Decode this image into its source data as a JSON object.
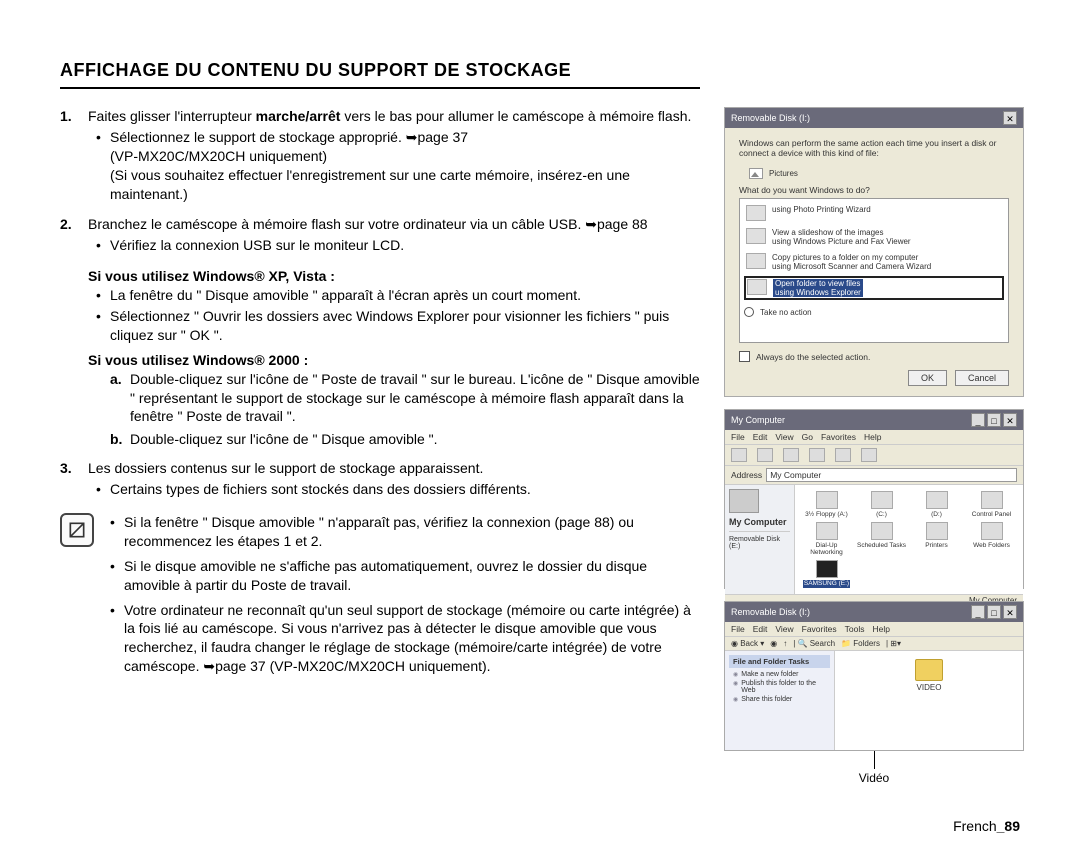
{
  "title": "AFFICHAGE DU CONTENU DU SUPPORT DE STOCKAGE",
  "step1": {
    "num": "1.",
    "text_a": "Faites glisser l'interrupteur ",
    "bold": "marche/arrêt",
    "text_b": " vers le bas pour allumer le caméscope à mémoire flash.",
    "bullet1a": "Sélectionnez le support de stockage approprié. ➥page 37",
    "bullet1b": "(VP-MX20C/MX20CH uniquement)",
    "bullet1c": "(Si vous souhaitez effectuer l'enregistrement sur une carte mémoire, insérez-en une maintenant.)"
  },
  "step2": {
    "num": "2.",
    "text": "Branchez le caméscope à mémoire flash sur votre ordinateur via un câble USB. ➥page 88",
    "bullet": "Vérifiez la connexion USB sur le moniteur LCD."
  },
  "xp": {
    "head": "Si vous utilisez Windows® XP, Vista :",
    "b1": "La fenêtre du \" Disque amovible \" apparaît à l'écran après un court moment.",
    "b2": "Sélectionnez \" Ouvrir les dossiers avec Windows Explorer pour visionner les fichiers \" puis cliquez sur \" OK \"."
  },
  "w2k": {
    "head": "Si vous utilisez Windows® 2000 :",
    "a": "Double-cliquez sur l'icône de \" Poste de travail \" sur le bureau. L'icône de \" Disque amovible \" représentant le support de stockage sur le caméscope à mémoire flash apparaît dans la fenêtre \" Poste de travail \".",
    "b": "Double-cliquez sur l'icône de \" Disque amovible \"."
  },
  "step3": {
    "num": "3.",
    "text": "Les dossiers contenus sur le support de stockage apparaissent.",
    "bullet": "Certains types de fichiers sont stockés dans des dossiers différents."
  },
  "notes": {
    "n1": "Si la fenêtre \" Disque amovible \" n'apparaît pas, vérifiez la connexion (page 88) ou recommencez les étapes 1 et 2.",
    "n2": "Si le disque amovible ne s'affiche pas automatiquement, ouvrez le dossier du disque amovible à partir du Poste de travail.",
    "n3": "Votre ordinateur ne reconnaît qu'un seul support de stockage (mémoire ou carte intégrée) à la fois lié au caméscope. Si vous n'arrivez pas à détecter le disque amovible que vous recherchez, il faudra changer le réglage de stockage (mémoire/carte intégrée) de votre caméscope. ➥page 37 (VP-MX20C/MX20CH uniquement)."
  },
  "footer": {
    "lang": "French",
    "page": "_89"
  },
  "shot1": {
    "title": "Removable Disk (I:)",
    "prompt": "Windows can perform the same action each time you insert a disk or connect a device with this kind of file:",
    "pictures": "Pictures",
    "question": "What do you want Windows to do?",
    "items": [
      "using Photo Printing Wizard",
      "View a slideshow of the images\nusing Windows Picture and Fax Viewer",
      "Copy pictures to a folder on my computer\nusing Microsoft Scanner and Camera Wizard",
      "Open folder to view files\nusing Windows Explorer",
      "Take no action"
    ],
    "always": "Always do the selected action.",
    "ok": "OK",
    "cancel": "Cancel"
  },
  "shot2": {
    "title": "My Computer",
    "menu": [
      "File",
      "Edit",
      "View",
      "Go",
      "Favorites",
      "Help"
    ],
    "address_label": "Address",
    "address_value": "My Computer",
    "left_hdr": "My Computer",
    "left_sub": "Removable Disk (E:)",
    "icons": [
      {
        "lbl": "3½ Floppy (A:)"
      },
      {
        "lbl": "(C:)"
      },
      {
        "lbl": "(D:)"
      },
      {
        "lbl": "Control Panel"
      },
      {
        "lbl": "Dial-Up Networking"
      },
      {
        "lbl": "Scheduled Tasks"
      },
      {
        "lbl": "Printers"
      },
      {
        "lbl": "Web Folders"
      },
      {
        "lbl": "SAMSUNG (E:)",
        "sel": true
      }
    ],
    "status": "My Computer"
  },
  "shot3": {
    "title": "Removable Disk (I:)",
    "menu": [
      "File",
      "Edit",
      "View",
      "Favorites",
      "Tools",
      "Help"
    ],
    "back": "Back",
    "search": "Search",
    "folders": "Folders",
    "tasks_hdr": "File and Folder Tasks",
    "tasks": [
      "Make a new folder",
      "Publish this folder to the Web",
      "Share this folder"
    ],
    "folder": "VIDEO",
    "callout": "Vidéo"
  }
}
